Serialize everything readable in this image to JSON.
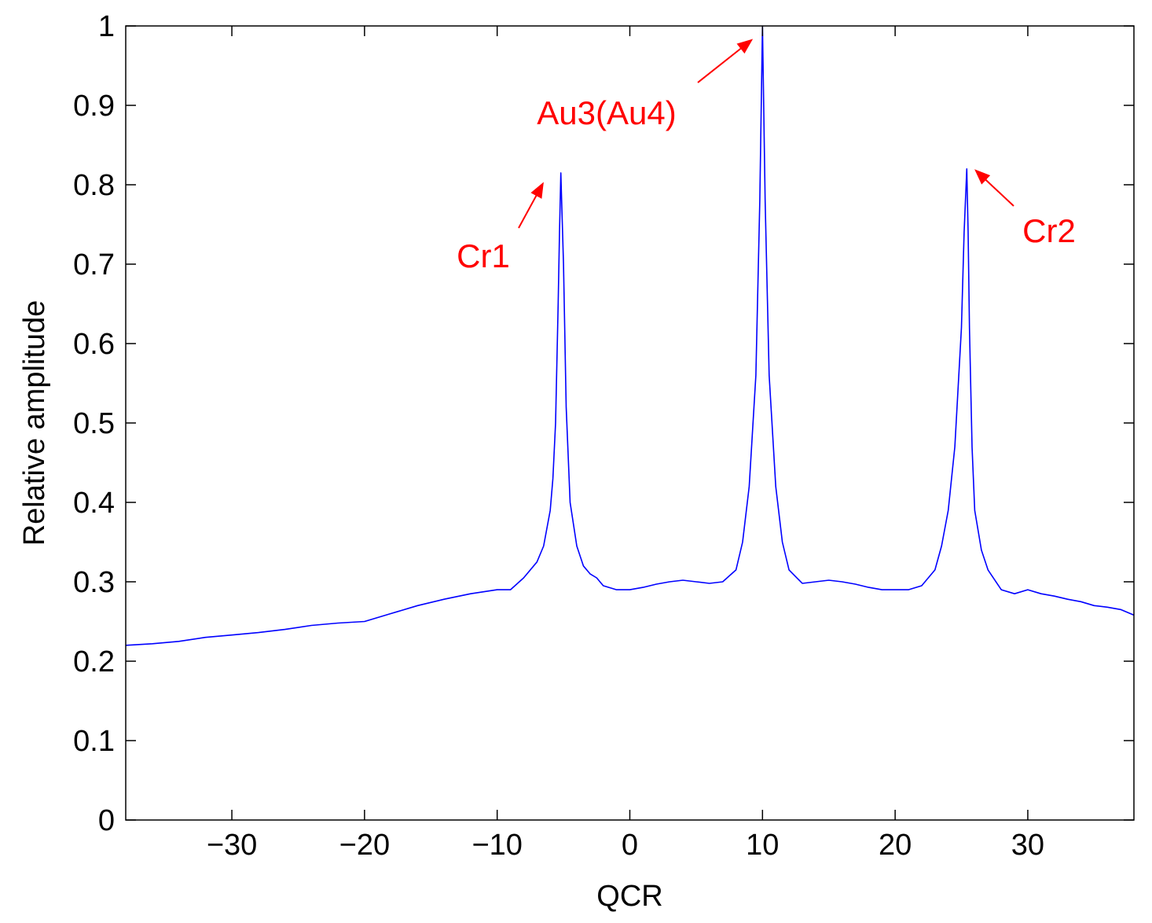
{
  "chart_data": {
    "type": "line",
    "title": "",
    "xlabel": "QCR",
    "ylabel": "Relative amplitude",
    "xlim": [
      -38,
      38
    ],
    "ylim": [
      0,
      1
    ],
    "x_ticks": [
      -30,
      -20,
      -10,
      0,
      10,
      20,
      30
    ],
    "x_tick_labels": [
      "−30",
      "−20",
      "−10",
      "0",
      "10",
      "20",
      "30"
    ],
    "y_ticks": [
      0,
      0.1,
      0.2,
      0.3,
      0.4,
      0.5,
      0.6,
      0.7,
      0.8,
      0.9,
      1
    ],
    "y_tick_labels": [
      "0",
      "0.1",
      "0.2",
      "0.3",
      "0.4",
      "0.5",
      "0.6",
      "0.7",
      "0.8",
      "0.9",
      "1"
    ],
    "grid": false,
    "legend": "none",
    "series": [
      {
        "color": "#0000ff",
        "x": [
          -38,
          -36,
          -34,
          -32,
          -30,
          -28,
          -26,
          -24,
          -22,
          -20,
          -18,
          -16,
          -14,
          -12,
          -10,
          -9,
          -8,
          -7,
          -6.5,
          -6,
          -5.8,
          -5.6,
          -5.4,
          -5.3,
          -5.2,
          -5,
          -4.8,
          -4.5,
          -4,
          -3.5,
          -3,
          -2.5,
          -2,
          -1,
          0,
          1,
          2,
          3,
          4,
          5,
          6,
          7,
          8,
          8.5,
          9,
          9.5,
          9.8,
          10,
          10.2,
          10.5,
          11,
          11.5,
          12,
          13,
          14,
          15,
          16,
          17,
          18,
          19,
          20,
          21,
          22,
          22.5,
          23,
          23.5,
          24,
          24.5,
          25,
          25.2,
          25.4,
          25.5,
          25.6,
          25.8,
          26,
          26.5,
          27,
          28,
          29,
          30,
          31,
          32,
          33,
          34,
          35,
          36,
          37,
          38
        ],
        "y": [
          0.22,
          0.222,
          0.225,
          0.23,
          0.233,
          0.236,
          0.24,
          0.245,
          0.248,
          0.25,
          0.26,
          0.27,
          0.278,
          0.285,
          0.29,
          0.29,
          0.305,
          0.325,
          0.345,
          0.39,
          0.43,
          0.5,
          0.65,
          0.74,
          0.815,
          0.7,
          0.52,
          0.4,
          0.345,
          0.32,
          0.31,
          0.305,
          0.295,
          0.29,
          0.29,
          0.293,
          0.297,
          0.3,
          0.302,
          0.3,
          0.298,
          0.3,
          0.315,
          0.35,
          0.42,
          0.56,
          0.78,
          1.0,
          0.78,
          0.56,
          0.42,
          0.35,
          0.315,
          0.298,
          0.3,
          0.302,
          0.3,
          0.297,
          0.293,
          0.29,
          0.29,
          0.29,
          0.295,
          0.305,
          0.315,
          0.345,
          0.39,
          0.47,
          0.62,
          0.74,
          0.82,
          0.74,
          0.62,
          0.47,
          0.39,
          0.34,
          0.315,
          0.29,
          0.285,
          0.29,
          0.285,
          0.282,
          0.278,
          0.275,
          0.27,
          0.268,
          0.265,
          0.258
        ]
      }
    ],
    "annotations": [
      {
        "text": "Au3(Au4)",
        "x": 10,
        "y": 1.0,
        "color": "#ff0000"
      },
      {
        "text": "Cr1",
        "x": -5.2,
        "y": 0.815,
        "color": "#ff0000"
      },
      {
        "text": "Cr2",
        "x": 25.4,
        "y": 0.82,
        "color": "#ff0000"
      }
    ]
  }
}
